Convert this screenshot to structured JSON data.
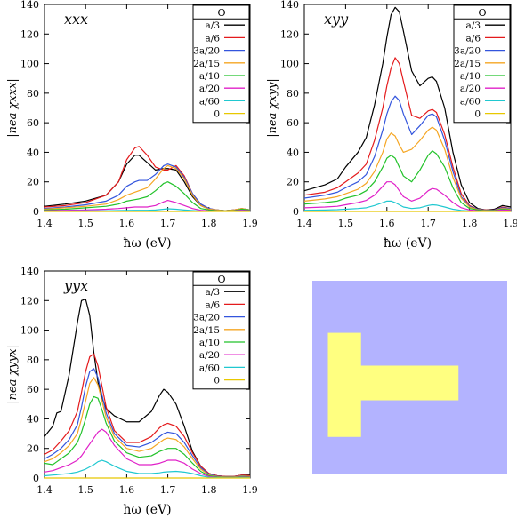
{
  "colors": {
    "axis": "#000000",
    "background": "#ffffff",
    "series": [
      "#000000",
      "#e41a1c",
      "#3355dd",
      "#f5a623",
      "#22c22a",
      "#e020c8",
      "#20c8d0",
      "#e8c800"
    ],
    "inset_background": "#b3b3ff",
    "inset_shape": "#ffff80"
  },
  "legend_title": "O",
  "inset": {
    "description": "T-shaped metallic structure (yellow) on substrate (blue)",
    "x_range": [
      0,
      1
    ],
    "y_range": [
      0,
      1
    ],
    "vertical_bar": {
      "x": [
        0.08,
        0.25
      ],
      "y": [
        0.27,
        0.81
      ]
    },
    "horizontal_bar": {
      "x": [
        0.25,
        0.75
      ],
      "y": [
        0.44,
        0.62
      ]
    }
  },
  "chart_data": [
    {
      "type": "line",
      "panel_label": "xxx",
      "xlabel": "ħω (eV)",
      "ylabel": "|nea χxxx|",
      "xlim": [
        1.4,
        1.9
      ],
      "ylim": [
        0,
        140
      ],
      "xticks": [
        "1.4",
        "1.5",
        "1.6",
        "1.7",
        "1.8",
        "1.9"
      ],
      "yticks": [
        "0",
        "20",
        "40",
        "60",
        "80",
        "100",
        "120",
        "140"
      ],
      "legend_position": "top-right",
      "x": [
        1.4,
        1.45,
        1.5,
        1.55,
        1.58,
        1.6,
        1.62,
        1.63,
        1.65,
        1.67,
        1.69,
        1.7,
        1.72,
        1.74,
        1.76,
        1.78,
        1.8,
        1.82,
        1.84,
        1.86,
        1.88,
        1.9
      ],
      "series": [
        {
          "name": "a/3",
          "values": [
            3.5,
            5,
            7,
            11,
            20,
            32,
            38,
            38,
            33,
            28,
            29,
            29,
            28,
            20,
            10,
            4,
            1.5,
            1,
            0.5,
            1,
            1.5,
            1
          ]
        },
        {
          "name": "a/6",
          "values": [
            3,
            4,
            6,
            11,
            20,
            35,
            43,
            44,
            38,
            30,
            28,
            28,
            31,
            24,
            12,
            5,
            2,
            1,
            0.5,
            1,
            2,
            1
          ]
        },
        {
          "name": "3a/20",
          "values": [
            2,
            3,
            4.5,
            7,
            11,
            17,
            20,
            21,
            21,
            25,
            31,
            32,
            30,
            23,
            12,
            5,
            2,
            1,
            0.5,
            1,
            2,
            1
          ]
        },
        {
          "name": "2a/15",
          "values": [
            1.5,
            2.5,
            3.5,
            5,
            8,
            11,
            13,
            14,
            16,
            22,
            29,
            31,
            29,
            22,
            11,
            4,
            1.5,
            1,
            0.5,
            1,
            2,
            1
          ]
        },
        {
          "name": "a/10",
          "values": [
            1,
            1.5,
            2.5,
            3.5,
            5,
            7,
            8,
            8.5,
            10,
            14,
            19,
            20,
            17,
            12,
            6,
            2,
            1,
            0.5,
            0.3,
            0.5,
            1.5,
            1
          ]
        },
        {
          "name": "a/20",
          "values": [
            0.5,
            0.8,
            1,
            1.5,
            2,
            2.5,
            3,
            3,
            3,
            4,
            6.5,
            7.5,
            6,
            4,
            2,
            0.8,
            0.4,
            0.3,
            0.2,
            0.3,
            0.8,
            0.5
          ]
        },
        {
          "name": "a/60",
          "values": [
            0.2,
            0.3,
            0.4,
            0.5,
            0.6,
            0.7,
            0.8,
            0.8,
            0.8,
            1,
            1.5,
            1.8,
            1.5,
            1,
            0.6,
            0.3,
            0.2,
            0.1,
            0.1,
            0.1,
            0.3,
            0.2
          ]
        },
        {
          "name": "0",
          "values": [
            0,
            0,
            0,
            0,
            0,
            0,
            0,
            0,
            0,
            0,
            0,
            0,
            0,
            0,
            0,
            0,
            0,
            0,
            0,
            0,
            0,
            0
          ]
        }
      ]
    },
    {
      "type": "line",
      "panel_label": "xyy",
      "xlabel": "ħω (eV)",
      "ylabel": "|nea χxyy|",
      "xlim": [
        1.4,
        1.9
      ],
      "ylim": [
        0,
        140
      ],
      "xticks": [
        "1.4",
        "1.5",
        "1.6",
        "1.7",
        "1.8",
        "1.9"
      ],
      "yticks": [
        "0",
        "20",
        "40",
        "60",
        "80",
        "100",
        "120",
        "140"
      ],
      "legend_position": "top-right",
      "x": [
        1.4,
        1.45,
        1.48,
        1.5,
        1.53,
        1.55,
        1.57,
        1.59,
        1.6,
        1.61,
        1.62,
        1.63,
        1.64,
        1.66,
        1.68,
        1.7,
        1.71,
        1.72,
        1.74,
        1.76,
        1.78,
        1.8,
        1.82,
        1.84,
        1.86,
        1.88,
        1.9
      ],
      "series": [
        {
          "name": "a/3",
          "values": [
            14,
            18,
            22,
            30,
            40,
            50,
            72,
            100,
            118,
            133,
            138,
            135,
            122,
            95,
            85,
            90,
            91,
            88,
            70,
            40,
            18,
            6,
            2,
            1,
            1.5,
            4,
            3
          ]
        },
        {
          "name": "a/6",
          "values": [
            11,
            13,
            16,
            20,
            26,
            32,
            48,
            70,
            85,
            97,
            104,
            100,
            88,
            65,
            63,
            68,
            69,
            67,
            52,
            30,
            12,
            4,
            1.5,
            1,
            1,
            3,
            2
          ]
        },
        {
          "name": "3a/20",
          "values": [
            9,
            11,
            13,
            16,
            20,
            25,
            37,
            55,
            66,
            74,
            78,
            75,
            66,
            52,
            58,
            65,
            66,
            64,
            48,
            27,
            10,
            3.5,
            1.5,
            0.8,
            1,
            2.5,
            2
          ]
        },
        {
          "name": "2a/15",
          "values": [
            7,
            8.5,
            10,
            12,
            15,
            19,
            27,
            40,
            49,
            53,
            51,
            45,
            40,
            42,
            48,
            55,
            57,
            55,
            42,
            23,
            9,
            3,
            1.2,
            0.7,
            0.8,
            2,
            1.5
          ]
        },
        {
          "name": "a/10",
          "values": [
            5,
            6,
            7,
            9,
            11,
            14,
            20,
            30,
            36,
            38,
            36,
            30,
            24,
            20,
            28,
            38,
            41,
            39,
            30,
            16,
            6,
            2,
            1,
            0.5,
            0.6,
            1.5,
            1
          ]
        },
        {
          "name": "a/20",
          "values": [
            2.5,
            3,
            3.5,
            4.5,
            6,
            7.5,
            11,
            17,
            20,
            20,
            18,
            14,
            10,
            7,
            9,
            14,
            15.5,
            15,
            11,
            6,
            2.5,
            1,
            0.5,
            0.3,
            0.4,
            1,
            0.7
          ]
        },
        {
          "name": "a/60",
          "values": [
            0.8,
            1,
            1.2,
            1.5,
            2,
            2.5,
            4,
            6,
            7,
            7,
            6,
            4.5,
            3,
            2,
            2.5,
            4,
            4.5,
            4.3,
            3,
            1.5,
            0.7,
            0.3,
            0.2,
            0.1,
            0.1,
            0.3,
            0.2
          ]
        },
        {
          "name": "0",
          "values": [
            0,
            0,
            0,
            0,
            0,
            0,
            0,
            0,
            0,
            0,
            0,
            0,
            0,
            0,
            0,
            0,
            0,
            0,
            0,
            0,
            0,
            0,
            0,
            0,
            0,
            0,
            0
          ]
        }
      ]
    },
    {
      "type": "line",
      "panel_label": "yyx",
      "xlabel": "ħω (eV)",
      "ylabel": "|nea χyyx|",
      "xlim": [
        1.4,
        1.9
      ],
      "ylim": [
        0,
        140
      ],
      "xticks": [
        "1.4",
        "1.5",
        "1.6",
        "1.7",
        "1.8",
        "1.9"
      ],
      "yticks": [
        "0",
        "20",
        "40",
        "60",
        "80",
        "100",
        "120",
        "140"
      ],
      "legend_position": "top-right",
      "x": [
        1.4,
        1.42,
        1.43,
        1.44,
        1.46,
        1.48,
        1.49,
        1.5,
        1.51,
        1.52,
        1.53,
        1.54,
        1.55,
        1.57,
        1.6,
        1.63,
        1.66,
        1.68,
        1.69,
        1.7,
        1.72,
        1.74,
        1.76,
        1.78,
        1.8,
        1.82,
        1.84,
        1.86,
        1.88,
        1.9
      ],
      "series": [
        {
          "name": "a/3",
          "values": [
            28,
            35,
            44,
            45,
            70,
            105,
            120,
            121,
            110,
            85,
            65,
            54,
            47,
            42,
            38,
            38,
            45,
            56,
            60,
            58,
            50,
            35,
            18,
            8,
            3,
            1.5,
            1,
            1,
            2,
            2
          ]
        },
        {
          "name": "a/6",
          "values": [
            16,
            19,
            22,
            25,
            32,
            45,
            58,
            72,
            82,
            84,
            76,
            62,
            48,
            32,
            24,
            24,
            28,
            34,
            36,
            37,
            35,
            28,
            17,
            8,
            3,
            1.5,
            1,
            1,
            2,
            1.5
          ]
        },
        {
          "name": "3a/20",
          "values": [
            13,
            16,
            18,
            20,
            26,
            36,
            48,
            62,
            72,
            74,
            68,
            56,
            44,
            30,
            22,
            21,
            24,
            28,
            30,
            31,
            30,
            24,
            15,
            7,
            2.5,
            1.2,
            0.8,
            0.8,
            1.5,
            1
          ]
        },
        {
          "name": "2a/15",
          "values": [
            11,
            13,
            15,
            17,
            22,
            30,
            40,
            52,
            64,
            68,
            63,
            52,
            41,
            28,
            20,
            18,
            20,
            24,
            26,
            27,
            26,
            21,
            13,
            6,
            2,
            1,
            0.7,
            0.7,
            1.3,
            1
          ]
        },
        {
          "name": "a/10",
          "values": [
            10,
            9,
            11,
            13,
            17,
            24,
            31,
            40,
            50,
            55,
            54,
            46,
            37,
            25,
            17,
            14,
            15,
            18,
            19,
            20,
            20,
            16,
            10,
            4.5,
            1.5,
            0.8,
            0.5,
            0.5,
            1,
            0.8
          ]
        },
        {
          "name": "a/20",
          "values": [
            4,
            5,
            6,
            7,
            9,
            12,
            15,
            19,
            23,
            27,
            31,
            33,
            31,
            22,
            13,
            9,
            9,
            10,
            11,
            12,
            12,
            10,
            6,
            3,
            1,
            0.5,
            0.3,
            0.3,
            0.6,
            0.5
          ]
        },
        {
          "name": "a/60",
          "values": [
            1.5,
            2,
            2.2,
            2.5,
            3,
            4,
            5,
            6,
            7.5,
            9,
            11,
            12,
            11,
            8,
            4.5,
            3,
            3,
            3.5,
            4,
            4.2,
            4.5,
            4,
            3,
            1.5,
            0.5,
            0.3,
            0.2,
            0.2,
            0.3,
            0.2
          ]
        },
        {
          "name": "0",
          "values": [
            0,
            0,
            0,
            0,
            0,
            0,
            0,
            0,
            0,
            0,
            0,
            0,
            0,
            0,
            0,
            0,
            0,
            0,
            0,
            0,
            0,
            0,
            0,
            0,
            0,
            0,
            0,
            0,
            0,
            0
          ]
        }
      ]
    }
  ]
}
